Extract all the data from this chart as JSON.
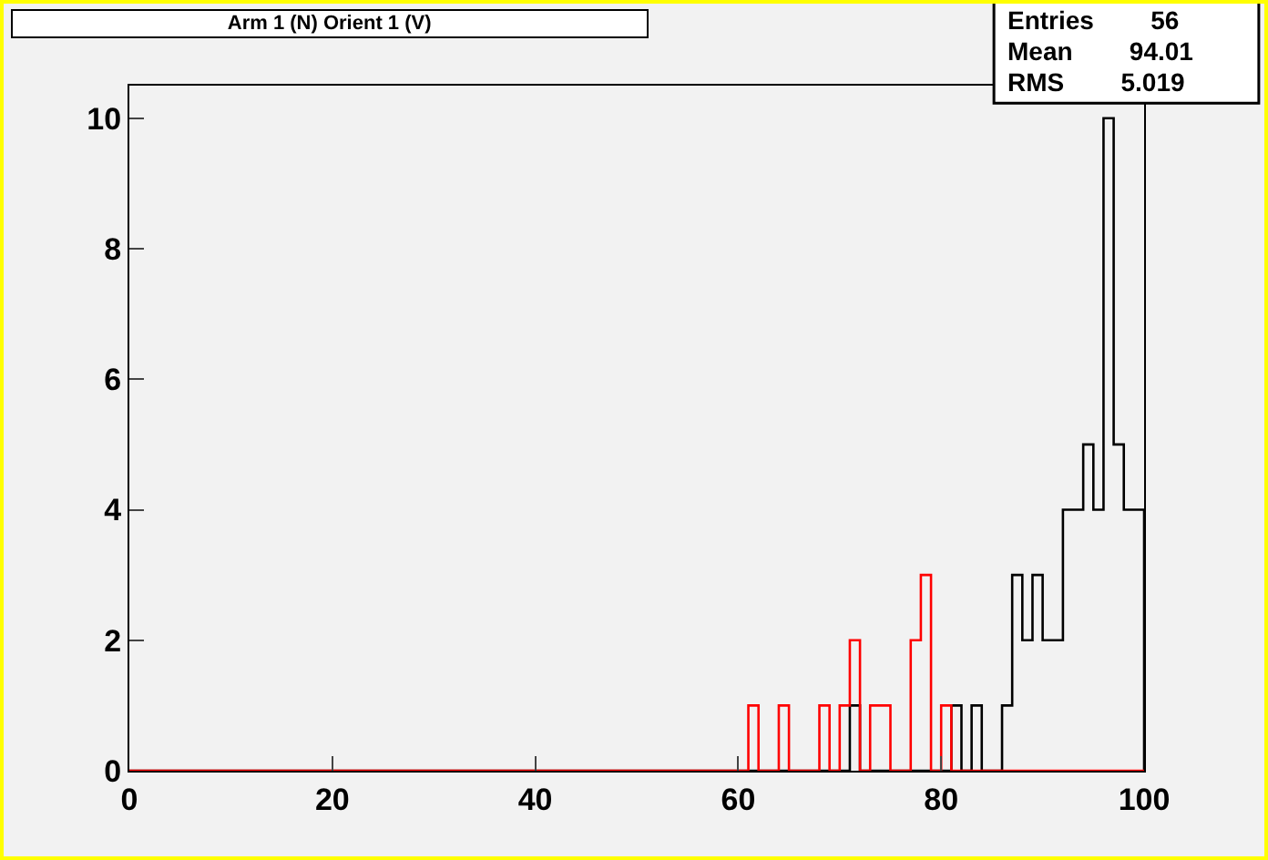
{
  "chart_data": {
    "type": "histogram",
    "title": "Arm 1 (N) Orient 1 (V)",
    "bins": [
      0,
      1,
      2,
      3,
      4,
      5,
      6,
      7,
      8,
      9,
      10,
      11,
      12,
      13,
      14,
      15,
      16,
      17,
      18,
      19,
      20,
      21,
      22,
      23,
      24,
      25,
      26,
      27,
      28,
      29,
      30,
      31,
      32,
      33,
      34,
      35,
      36,
      37,
      38,
      39,
      40,
      41,
      42,
      43,
      44,
      45,
      46,
      47,
      48,
      49,
      50,
      51,
      52,
      53,
      54,
      55,
      56,
      57,
      58,
      59,
      60,
      61,
      62,
      63,
      64,
      65,
      66,
      67,
      68,
      69,
      70,
      71,
      72,
      73,
      74,
      75,
      76,
      77,
      78,
      79,
      80,
      81,
      82,
      83,
      84,
      85,
      86,
      87,
      88,
      89,
      90,
      91,
      92,
      93,
      94,
      95,
      96,
      97,
      98,
      99,
      100
    ],
    "series": [
      {
        "color": "#000000",
        "values": [
          0,
          0,
          0,
          0,
          0,
          0,
          0,
          0,
          0,
          0,
          0,
          0,
          0,
          0,
          0,
          0,
          0,
          0,
          0,
          0,
          0,
          0,
          0,
          0,
          0,
          0,
          0,
          0,
          0,
          0,
          0,
          0,
          0,
          0,
          0,
          0,
          0,
          0,
          0,
          0,
          0,
          0,
          0,
          0,
          0,
          0,
          0,
          0,
          0,
          0,
          0,
          0,
          0,
          0,
          0,
          0,
          0,
          0,
          0,
          0,
          0,
          0,
          0,
          0,
          0,
          0,
          0,
          0,
          0,
          0,
          0,
          1,
          0,
          0,
          0,
          0,
          0,
          0,
          0,
          0,
          0,
          1,
          0,
          1,
          0,
          0,
          1,
          3,
          2,
          3,
          2,
          2,
          4,
          4,
          5,
          4,
          10,
          5,
          4,
          4
        ]
      },
      {
        "color": "#ff0000",
        "values": [
          0,
          0,
          0,
          0,
          0,
          0,
          0,
          0,
          0,
          0,
          0,
          0,
          0,
          0,
          0,
          0,
          0,
          0,
          0,
          0,
          0,
          0,
          0,
          0,
          0,
          0,
          0,
          0,
          0,
          0,
          0,
          0,
          0,
          0,
          0,
          0,
          0,
          0,
          0,
          0,
          0,
          0,
          0,
          0,
          0,
          0,
          0,
          0,
          0,
          0,
          0,
          0,
          0,
          0,
          0,
          0,
          0,
          0,
          0,
          0,
          0,
          1,
          0,
          0,
          1,
          0,
          0,
          0,
          1,
          0,
          1,
          2,
          0,
          1,
          1,
          0,
          0,
          2,
          3,
          0,
          1,
          0,
          0,
          0,
          0,
          0,
          0,
          0,
          0,
          0,
          0,
          0,
          0,
          0,
          0,
          0,
          0,
          0,
          0,
          0
        ]
      }
    ],
    "xlim": [
      0,
      100
    ],
    "xticks": [
      0,
      20,
      40,
      60,
      80,
      100
    ],
    "ylim": [
      0,
      10.5
    ],
    "yticks": [
      0,
      2,
      4,
      6,
      8,
      10
    ],
    "annotations": [
      "Entries 56",
      "Mean 94.01",
      "RMS 5.019"
    ],
    "grid": false
  }
}
